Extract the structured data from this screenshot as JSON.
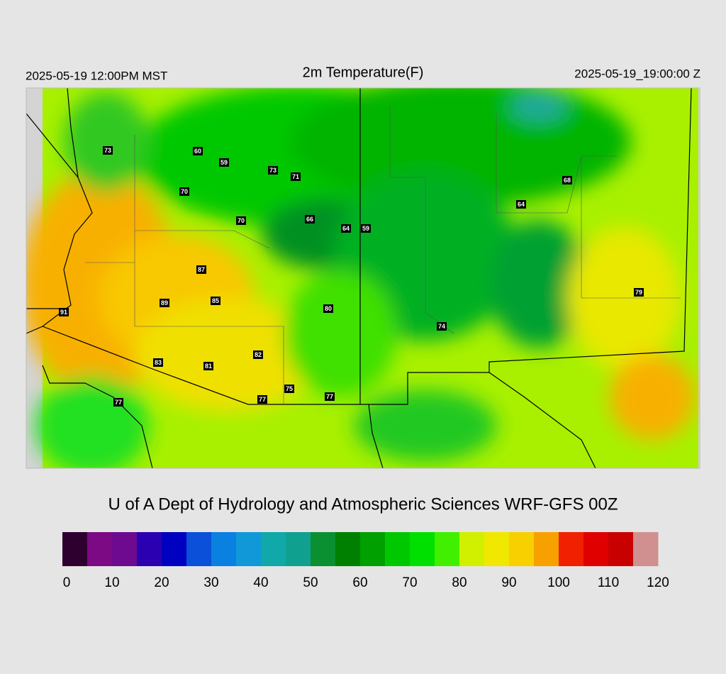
{
  "header": {
    "left": "2025-05-19 12:00PM MST",
    "title": "2m Temperature(F)",
    "right": "2025-05-19_19:00:00 Z"
  },
  "stations": [
    "73",
    "60",
    "59",
    "73",
    "71",
    "70",
    "70",
    "66",
    "64",
    "59",
    "68",
    "64",
    "87",
    "89",
    "85",
    "80",
    "91",
    "79",
    "74",
    "82",
    "83",
    "81",
    "75",
    "77",
    "77",
    "77"
  ],
  "footer": {
    "credit": "U of A Dept of Hydrology and Atmospheric Sciences WRF-GFS 00Z"
  },
  "colorbar": {
    "range": [
      0,
      120
    ],
    "ticks": [
      0,
      10,
      20,
      30,
      40,
      50,
      60,
      70,
      80,
      90,
      100,
      110,
      120
    ],
    "colors": [
      "#2d0030",
      "#7d0a85",
      "#6e0a90",
      "#2a00b0",
      "#0000c0",
      "#0a50d8",
      "#0a80e0",
      "#1098d8",
      "#10a8a8",
      "#10a090",
      "#0a9030",
      "#008000",
      "#00a000",
      "#00c800",
      "#00e000",
      "#40f000",
      "#d0f000",
      "#f0e800",
      "#f8d000",
      "#f8a000",
      "#f02000",
      "#e00000",
      "#c80000",
      "#d09090"
    ]
  }
}
